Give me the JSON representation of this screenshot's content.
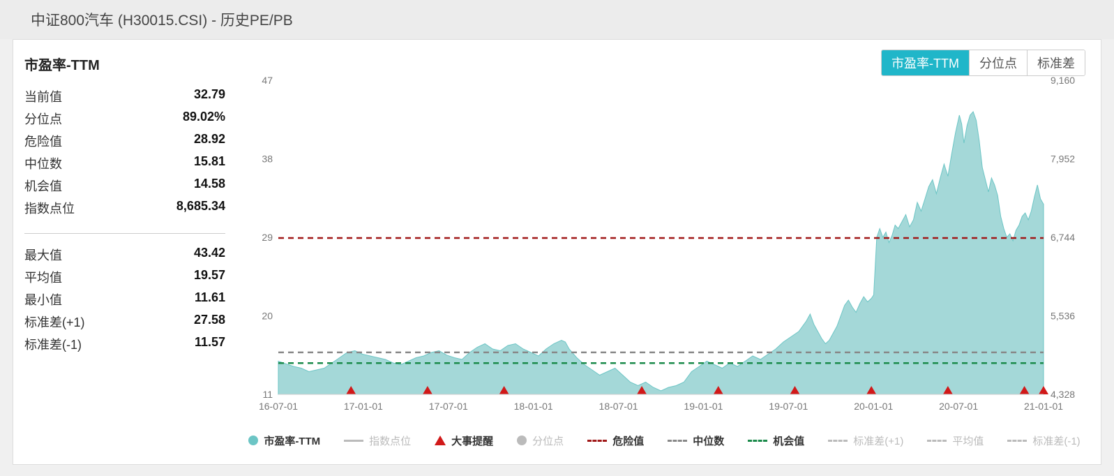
{
  "header": {
    "title": "中证800汽车 (H30015.CSI) - 历史PE/PB"
  },
  "tabs": [
    {
      "label": "市盈率-TTM",
      "active": true
    },
    {
      "label": "分位点",
      "active": false
    },
    {
      "label": "标准差",
      "active": false
    }
  ],
  "stats": {
    "title": "市盈率-TTM",
    "block1": [
      {
        "label": "当前值",
        "value": "32.79"
      },
      {
        "label": "分位点",
        "value": "89.02%"
      },
      {
        "label": "危险值",
        "value": "28.92"
      },
      {
        "label": "中位数",
        "value": "15.81"
      },
      {
        "label": "机会值",
        "value": "14.58"
      },
      {
        "label": "指数点位",
        "value": "8,685.34"
      }
    ],
    "block2": [
      {
        "label": "最大值",
        "value": "43.42"
      },
      {
        "label": "平均值",
        "value": "19.57"
      },
      {
        "label": "最小值",
        "value": "11.61"
      },
      {
        "label": "标准差(+1)",
        "value": "27.58"
      },
      {
        "label": "标准差(-1)",
        "value": "11.57"
      }
    ]
  },
  "chart": {
    "type": "area-line-dual-axis",
    "colors": {
      "area_fill": "#a4d8d8",
      "area_stroke": "#6cc5c5",
      "risk_line": "#a01717",
      "median_line": "#888888",
      "opportunity_line": "#1a8a4a",
      "axis_text": "#777",
      "event_marker": "#d11919"
    },
    "left_axis": {
      "min": 11,
      "max": 47,
      "ticks": [
        11,
        20,
        29,
        38,
        47
      ]
    },
    "right_axis": {
      "min": 4328,
      "max": 9160,
      "ticks": [
        4328,
        5536,
        6744,
        7952,
        9160
      ],
      "labels": [
        "4,328",
        "5,536",
        "6,744",
        "7,952",
        "9,160"
      ]
    },
    "x_labels": [
      "16-07-01",
      "17-01-01",
      "17-07-01",
      "18-01-01",
      "18-07-01",
      "19-01-01",
      "19-07-01",
      "20-01-01",
      "20-07-01",
      "21-01-01"
    ],
    "risk_value": 28.92,
    "median_value": 15.81,
    "opportunity_value": 14.58,
    "event_markers_x": [
      0.095,
      0.195,
      0.295,
      0.475,
      0.575,
      0.675,
      0.775,
      0.875,
      0.975,
      1.0
    ],
    "series_pe": [
      [
        0.0,
        14.8
      ],
      [
        0.01,
        14.5
      ],
      [
        0.02,
        14.2
      ],
      [
        0.03,
        14.0
      ],
      [
        0.04,
        13.6
      ],
      [
        0.05,
        13.8
      ],
      [
        0.06,
        14.0
      ],
      [
        0.07,
        14.6
      ],
      [
        0.08,
        15.2
      ],
      [
        0.09,
        15.8
      ],
      [
        0.1,
        16.0
      ],
      [
        0.11,
        15.6
      ],
      [
        0.12,
        15.4
      ],
      [
        0.13,
        15.2
      ],
      [
        0.14,
        15.0
      ],
      [
        0.15,
        14.6
      ],
      [
        0.16,
        14.4
      ],
      [
        0.17,
        14.8
      ],
      [
        0.18,
        15.2
      ],
      [
        0.19,
        15.4
      ],
      [
        0.2,
        15.8
      ],
      [
        0.21,
        16.0
      ],
      [
        0.22,
        15.5
      ],
      [
        0.23,
        15.2
      ],
      [
        0.24,
        15.0
      ],
      [
        0.25,
        15.8
      ],
      [
        0.26,
        16.4
      ],
      [
        0.27,
        16.8
      ],
      [
        0.28,
        16.2
      ],
      [
        0.29,
        16.0
      ],
      [
        0.3,
        16.6
      ],
      [
        0.31,
        16.8
      ],
      [
        0.32,
        16.2
      ],
      [
        0.33,
        15.8
      ],
      [
        0.34,
        15.4
      ],
      [
        0.35,
        16.2
      ],
      [
        0.36,
        16.8
      ],
      [
        0.37,
        17.2
      ],
      [
        0.375,
        17.0
      ],
      [
        0.38,
        16.2
      ],
      [
        0.39,
        15.2
      ],
      [
        0.4,
        14.4
      ],
      [
        0.41,
        13.8
      ],
      [
        0.42,
        13.2
      ],
      [
        0.43,
        13.6
      ],
      [
        0.44,
        14.0
      ],
      [
        0.45,
        13.2
      ],
      [
        0.46,
        12.4
      ],
      [
        0.47,
        12.0
      ],
      [
        0.48,
        12.4
      ],
      [
        0.49,
        11.8
      ],
      [
        0.5,
        11.4
      ],
      [
        0.51,
        11.8
      ],
      [
        0.52,
        12.0
      ],
      [
        0.53,
        12.4
      ],
      [
        0.54,
        13.6
      ],
      [
        0.55,
        14.2
      ],
      [
        0.56,
        14.8
      ],
      [
        0.57,
        14.4
      ],
      [
        0.58,
        14.0
      ],
      [
        0.59,
        14.6
      ],
      [
        0.6,
        14.2
      ],
      [
        0.61,
        14.8
      ],
      [
        0.62,
        15.4
      ],
      [
        0.63,
        15.0
      ],
      [
        0.64,
        15.6
      ],
      [
        0.65,
        16.2
      ],
      [
        0.66,
        17.0
      ],
      [
        0.67,
        17.6
      ],
      [
        0.68,
        18.2
      ],
      [
        0.69,
        19.4
      ],
      [
        0.695,
        20.2
      ],
      [
        0.7,
        19.0
      ],
      [
        0.705,
        18.2
      ],
      [
        0.71,
        17.4
      ],
      [
        0.715,
        16.8
      ],
      [
        0.72,
        17.2
      ],
      [
        0.725,
        18.0
      ],
      [
        0.73,
        18.8
      ],
      [
        0.735,
        20.0
      ],
      [
        0.74,
        21.2
      ],
      [
        0.745,
        21.8
      ],
      [
        0.75,
        21.0
      ],
      [
        0.755,
        20.4
      ],
      [
        0.76,
        21.4
      ],
      [
        0.765,
        22.2
      ],
      [
        0.77,
        21.6
      ],
      [
        0.775,
        22.0
      ],
      [
        0.778,
        22.4
      ],
      [
        0.782,
        29.0
      ],
      [
        0.786,
        30.0
      ],
      [
        0.79,
        29.0
      ],
      [
        0.794,
        29.6
      ],
      [
        0.798,
        28.4
      ],
      [
        0.802,
        29.2
      ],
      [
        0.806,
        30.4
      ],
      [
        0.81,
        30.0
      ],
      [
        0.815,
        30.8
      ],
      [
        0.82,
        31.6
      ],
      [
        0.825,
        30.2
      ],
      [
        0.83,
        31.0
      ],
      [
        0.835,
        33.0
      ],
      [
        0.84,
        32.0
      ],
      [
        0.845,
        33.4
      ],
      [
        0.85,
        34.8
      ],
      [
        0.855,
        35.6
      ],
      [
        0.86,
        34.0
      ],
      [
        0.865,
        35.8
      ],
      [
        0.87,
        37.4
      ],
      [
        0.875,
        36.0
      ],
      [
        0.88,
        38.6
      ],
      [
        0.885,
        41.0
      ],
      [
        0.89,
        43.0
      ],
      [
        0.893,
        42.0
      ],
      [
        0.896,
        39.8
      ],
      [
        0.9,
        41.8
      ],
      [
        0.904,
        43.0
      ],
      [
        0.908,
        43.4
      ],
      [
        0.912,
        42.4
      ],
      [
        0.916,
        40.0
      ],
      [
        0.92,
        37.0
      ],
      [
        0.924,
        35.6
      ],
      [
        0.928,
        34.2
      ],
      [
        0.932,
        35.8
      ],
      [
        0.936,
        35.0
      ],
      [
        0.94,
        33.8
      ],
      [
        0.944,
        31.4
      ],
      [
        0.948,
        30.0
      ],
      [
        0.952,
        29.0
      ],
      [
        0.956,
        29.4
      ],
      [
        0.96,
        28.6
      ],
      [
        0.964,
        29.8
      ],
      [
        0.968,
        30.4
      ],
      [
        0.972,
        31.4
      ],
      [
        0.976,
        31.8
      ],
      [
        0.98,
        31.0
      ],
      [
        0.984,
        32.0
      ],
      [
        0.988,
        33.6
      ],
      [
        0.992,
        35.0
      ],
      [
        0.996,
        33.4
      ],
      [
        1.0,
        32.8
      ]
    ]
  },
  "legend": [
    {
      "key": "pe",
      "label": "市盈率-TTM",
      "style": "dot",
      "color": "#6cc5c5",
      "dim": false,
      "bold": true
    },
    {
      "key": "idx",
      "label": "指数点位",
      "style": "solid",
      "color": "#bbb",
      "dim": true
    },
    {
      "key": "evt",
      "label": "大事提醒",
      "style": "tri",
      "color": "#d11919",
      "dim": false,
      "bold": true
    },
    {
      "key": "pct",
      "label": "分位点",
      "style": "dot",
      "color": "#bbb",
      "dim": true
    },
    {
      "key": "risk",
      "label": "危险值",
      "style": "dash",
      "color": "#a01717",
      "dim": false,
      "bold": true
    },
    {
      "key": "med",
      "label": "中位数",
      "style": "dash",
      "color": "#888",
      "dim": false,
      "bold": true
    },
    {
      "key": "opp",
      "label": "机会值",
      "style": "dash",
      "color": "#1a8a4a",
      "dim": false,
      "bold": true
    },
    {
      "key": "sd1",
      "label": "标准差(+1)",
      "style": "dash",
      "color": "#bbb",
      "dim": true
    },
    {
      "key": "avg",
      "label": "平均值",
      "style": "dash",
      "color": "#bbb",
      "dim": true
    },
    {
      "key": "sd2",
      "label": "标准差(-1)",
      "style": "dash",
      "color": "#bbb",
      "dim": true
    }
  ]
}
